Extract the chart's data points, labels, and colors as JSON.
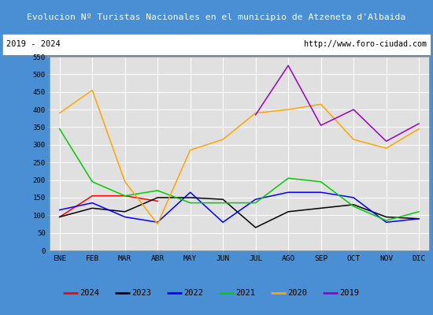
{
  "title": "Evolucion Nº Turistas Nacionales en el municipio de Atzeneta d'Albaida",
  "subtitle_left": "2019 - 2024",
  "subtitle_right": "http://www.foro-ciudad.com",
  "months": [
    "ENE",
    "FEB",
    "MAR",
    "ABR",
    "MAY",
    "JUN",
    "JUL",
    "AGO",
    "SEP",
    "OCT",
    "NOV",
    "DIC"
  ],
  "ylim": [
    0,
    550
  ],
  "yticks": [
    0,
    50,
    100,
    150,
    200,
    250,
    300,
    350,
    400,
    450,
    500,
    550
  ],
  "series": {
    "2024": {
      "color": "#ff0000",
      "data": [
        95,
        155,
        155,
        140,
        null,
        null,
        null,
        null,
        null,
        null,
        null,
        null
      ]
    },
    "2023": {
      "color": "#000000",
      "data": [
        95,
        120,
        110,
        150,
        150,
        145,
        65,
        110,
        120,
        130,
        95,
        90
      ]
    },
    "2022": {
      "color": "#0000ff",
      "data": [
        115,
        135,
        95,
        80,
        165,
        80,
        145,
        165,
        165,
        150,
        80,
        90
      ]
    },
    "2021": {
      "color": "#00cc00",
      "data": [
        345,
        195,
        155,
        170,
        135,
        135,
        135,
        205,
        195,
        125,
        85,
        110
      ]
    },
    "2020": {
      "color": "#ffa500",
      "data": [
        390,
        455,
        195,
        75,
        285,
        315,
        390,
        400,
        415,
        315,
        290,
        345
      ]
    },
    "2019": {
      "color": "#9900cc",
      "data": [
        null,
        null,
        null,
        null,
        null,
        null,
        385,
        525,
        355,
        400,
        310,
        360
      ]
    }
  },
  "legend_order": [
    "2024",
    "2023",
    "2022",
    "2021",
    "2020",
    "2019"
  ],
  "title_bg_color": "#4a8fd4",
  "title_text_color": "#ffffff",
  "subtitle_bg_color": "#ffffff",
  "plot_bg_color": "#e0e0e0",
  "grid_color": "#ffffff",
  "outer_bg_color": "#4a8fd4"
}
